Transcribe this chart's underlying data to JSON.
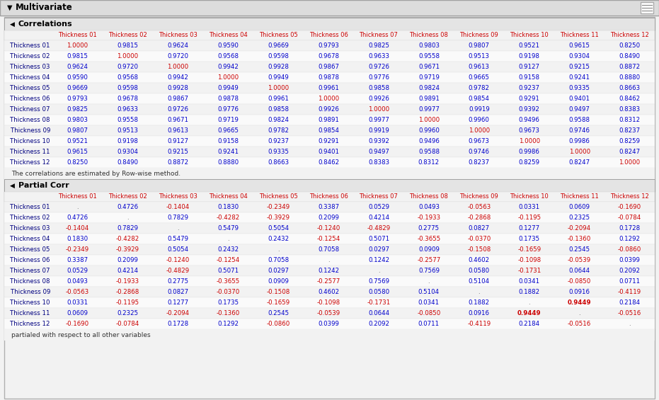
{
  "title": "Multivariate",
  "corr_section": "Correlations",
  "partial_section": "Partial Corr",
  "col_labels": [
    "Thickness 01",
    "Thickness 02",
    "Thickness 03",
    "Thickness 04",
    "Thickness 05",
    "Thickness 06",
    "Thickness 07",
    "Thickness 08",
    "Thickness 09",
    "Thickness 10",
    "Thickness 11",
    "Thickness 12"
  ],
  "row_labels": [
    "Thickness 01",
    "Thickness 02",
    "Thickness 03",
    "Thickness 04",
    "Thickness 05",
    "Thickness 06",
    "Thickness 07",
    "Thickness 08",
    "Thickness 09",
    "Thickness 10",
    "Thickness 11",
    "Thickness 12"
  ],
  "corr_data": [
    [
      "1.0000",
      "0.9815",
      "0.9624",
      "0.9590",
      "0.9669",
      "0.9793",
      "0.9825",
      "0.9803",
      "0.9807",
      "0.9521",
      "0.9615",
      "0.8250"
    ],
    [
      "0.9815",
      "1.0000",
      "0.9720",
      "0.9568",
      "0.9598",
      "0.9678",
      "0.9633",
      "0.9558",
      "0.9513",
      "0.9198",
      "0.9304",
      "0.8490"
    ],
    [
      "0.9624",
      "0.9720",
      "1.0000",
      "0.9942",
      "0.9928",
      "0.9867",
      "0.9726",
      "0.9671",
      "0.9613",
      "0.9127",
      "0.9215",
      "0.8872"
    ],
    [
      "0.9590",
      "0.9568",
      "0.9942",
      "1.0000",
      "0.9949",
      "0.9878",
      "0.9776",
      "0.9719",
      "0.9665",
      "0.9158",
      "0.9241",
      "0.8880"
    ],
    [
      "0.9669",
      "0.9598",
      "0.9928",
      "0.9949",
      "1.0000",
      "0.9961",
      "0.9858",
      "0.9824",
      "0.9782",
      "0.9237",
      "0.9335",
      "0.8663"
    ],
    [
      "0.9793",
      "0.9678",
      "0.9867",
      "0.9878",
      "0.9961",
      "1.0000",
      "0.9926",
      "0.9891",
      "0.9854",
      "0.9291",
      "0.9401",
      "0.8462"
    ],
    [
      "0.9825",
      "0.9633",
      "0.9726",
      "0.9776",
      "0.9858",
      "0.9926",
      "1.0000",
      "0.9977",
      "0.9919",
      "0.9392",
      "0.9497",
      "0.8383"
    ],
    [
      "0.9803",
      "0.9558",
      "0.9671",
      "0.9719",
      "0.9824",
      "0.9891",
      "0.9977",
      "1.0000",
      "0.9960",
      "0.9496",
      "0.9588",
      "0.8312"
    ],
    [
      "0.9807",
      "0.9513",
      "0.9613",
      "0.9665",
      "0.9782",
      "0.9854",
      "0.9919",
      "0.9960",
      "1.0000",
      "0.9673",
      "0.9746",
      "0.8237"
    ],
    [
      "0.9521",
      "0.9198",
      "0.9127",
      "0.9158",
      "0.9237",
      "0.9291",
      "0.9392",
      "0.9496",
      "0.9673",
      "1.0000",
      "0.9986",
      "0.8259"
    ],
    [
      "0.9615",
      "0.9304",
      "0.9215",
      "0.9241",
      "0.9335",
      "0.9401",
      "0.9497",
      "0.9588",
      "0.9746",
      "0.9986",
      "1.0000",
      "0.8247"
    ],
    [
      "0.8250",
      "0.8490",
      "0.8872",
      "0.8880",
      "0.8663",
      "0.8462",
      "0.8383",
      "0.8312",
      "0.8237",
      "0.8259",
      "0.8247",
      "1.0000"
    ]
  ],
  "partial_data": [
    [
      ".",
      "0.4726",
      "-0.1404",
      "0.1830",
      "-0.2349",
      "0.3387",
      "0.0529",
      "0.0493",
      "-0.0563",
      "0.0331",
      "0.0609",
      "-0.1690"
    ],
    [
      "0.4726",
      ".",
      "0.7829",
      "-0.4282",
      "-0.3929",
      "0.2099",
      "0.4214",
      "-0.1933",
      "-0.2868",
      "-0.1195",
      "0.2325",
      "-0.0784"
    ],
    [
      "-0.1404",
      "0.7829",
      ".",
      "0.5479",
      "0.5054",
      "-0.1240",
      "-0.4829",
      "0.2775",
      "0.0827",
      "0.1277",
      "-0.2094",
      "0.1728"
    ],
    [
      "0.1830",
      "-0.4282",
      "0.5479",
      ".",
      "0.2432",
      "-0.1254",
      "0.5071",
      "-0.3655",
      "-0.0370",
      "0.1735",
      "-0.1360",
      "0.1292"
    ],
    [
      "-0.2349",
      "-0.3929",
      "0.5054",
      "0.2432",
      ".",
      "0.7058",
      "0.0297",
      "0.0909",
      "-0.1508",
      "-0.1659",
      "0.2545",
      "-0.0860"
    ],
    [
      "0.3387",
      "0.2099",
      "-0.1240",
      "-0.1254",
      "0.7058",
      ".",
      "0.1242",
      "-0.2577",
      "0.4602",
      "-0.1098",
      "-0.0539",
      "0.0399"
    ],
    [
      "0.0529",
      "0.4214",
      "-0.4829",
      "0.5071",
      "0.0297",
      "0.1242",
      ".",
      "0.7569",
      "0.0580",
      "-0.1731",
      "0.0644",
      "0.2092"
    ],
    [
      "0.0493",
      "-0.1933",
      "0.2775",
      "-0.3655",
      "0.0909",
      "-0.2577",
      "0.7569",
      ".",
      "0.5104",
      "0.0341",
      "-0.0850",
      "0.0711"
    ],
    [
      "-0.0563",
      "-0.2868",
      "0.0827",
      "-0.0370",
      "-0.1508",
      "0.4602",
      "0.0580",
      "0.5104",
      ".",
      "0.1882",
      "0.0916",
      "-0.4119"
    ],
    [
      "0.0331",
      "-0.1195",
      "0.1277",
      "0.1735",
      "-0.1659",
      "-0.1098",
      "-0.1731",
      "0.0341",
      "0.1882",
      ".",
      "0.9449",
      "0.2184"
    ],
    [
      "0.0609",
      "0.2325",
      "-0.2094",
      "-0.1360",
      "0.2545",
      "-0.0539",
      "0.0644",
      "-0.0850",
      "0.0916",
      "0.9449",
      ".",
      "-0.0516"
    ],
    [
      "-0.1690",
      "-0.0784",
      "0.1728",
      "0.1292",
      "-0.0860",
      "0.0399",
      "0.2092",
      "0.0711",
      "-0.4119",
      "0.2184",
      "-0.0516",
      "."
    ]
  ],
  "corr_note": "The correlations are estimated by Row-wise method.",
  "partial_note": "partialed with respect to all other variables",
  "bg_color": "#f2f2f2",
  "outer_border_color": "#b0b0b0",
  "title_bg": "#dcdcdc",
  "title_border": "#a0a0a0",
  "section_bg": "#e4e4e4",
  "section_border": "#a0a0a0",
  "col_hdr_bg": "#f2f2f2",
  "row_bg_even": "#f2f2f2",
  "row_bg_odd": "#fafafa",
  "col_header_color": "#cc0000",
  "row_header_color": "#000080",
  "val_blue": "#0000cc",
  "val_red": "#cc0000",
  "diag_color": "#cc0000",
  "highlight_color": "#cc0000",
  "note_color": "#333333",
  "title_fontsize": 8.5,
  "section_fontsize": 8.0,
  "col_hdr_fontsize": 6.0,
  "data_fontsize": 6.2,
  "row_lbl_fontsize": 6.2,
  "note_fontsize": 6.5
}
